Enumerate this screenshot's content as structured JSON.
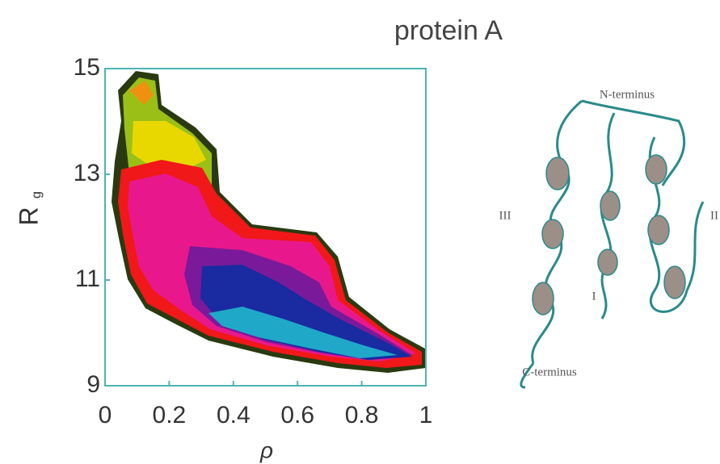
{
  "chart_data": {
    "type": "contour",
    "title": "protein A",
    "xlabel": "ρ",
    "ylabel": "R",
    "ylabel_subscript": "g",
    "xlim": [
      0,
      1
    ],
    "ylim": [
      9,
      15
    ],
    "xticks": [
      0,
      0.2,
      0.4,
      0.6,
      0.8,
      1
    ],
    "yticks": [
      9,
      11,
      13,
      15
    ],
    "frame_color": "#4fb3b3"
  },
  "structure": {
    "n_terminus": "N-terminus",
    "c_terminus": "C-terminus",
    "helix_1": "I",
    "helix_2": "II",
    "helix_3": "III"
  }
}
